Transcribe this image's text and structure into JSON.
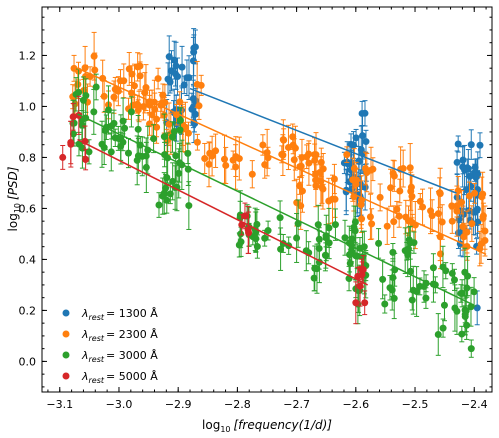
{
  "chart_data": {
    "type": "scatter",
    "xlabel_prefix": "log",
    "xlabel_sub": "10",
    "xlabel_var": "[frequency(1/d)]",
    "ylabel_prefix": "log",
    "ylabel_sub": "10",
    "ylabel_var": "[PSD]",
    "xlim": [
      -3.13,
      -2.37
    ],
    "ylim": [
      -0.12,
      1.39
    ],
    "xticks": [
      -3.1,
      -3.0,
      -2.9,
      -2.8,
      -2.7,
      -2.6,
      -2.5,
      -2.4
    ],
    "xtick_labels": [
      "−3.1",
      "−3.0",
      "−2.9",
      "−2.8",
      "−2.7",
      "−2.6",
      "−2.5",
      "−2.4"
    ],
    "yticks": [
      0.0,
      0.2,
      0.4,
      0.6,
      0.8,
      1.0,
      1.2
    ],
    "ytick_labels": [
      "0.0",
      "0.2",
      "0.4",
      "0.6",
      "0.8",
      "1.0",
      "1.2"
    ],
    "grid": false,
    "legend_position": "lower-left",
    "series": [
      {
        "name": "λrest = 1300 Å",
        "lambda_label": "λ",
        "sub_label": "rest",
        "value_label": "= 1300 Å",
        "color": "#1f77b4",
        "line": [
          [
            -2.88,
            1.07
          ],
          [
            -2.43,
            0.66
          ]
        ],
        "groups": [
          {
            "x": [
              -2.92,
              -2.87
            ],
            "y": [
              0.92,
              1.25
            ],
            "n": 30
          },
          {
            "x": [
              -2.62,
              -2.58
            ],
            "y": [
              0.62,
              0.98
            ],
            "n": 30
          },
          {
            "x": [
              -2.43,
              -2.39
            ],
            "y": [
              0.45,
              0.88
            ],
            "n": 35
          }
        ],
        "extra": [
          [
            -2.395,
            0.21
          ]
        ]
      },
      {
        "name": "λrest = 2300 Å",
        "lambda_label": "λ",
        "sub_label": "rest",
        "value_label": "= 2300 Å",
        "color": "#ff7f0e",
        "line": [
          [
            -3.07,
            1.15
          ],
          [
            -2.38,
            0.42
          ]
        ],
        "groups": [
          {
            "x": [
              -3.08,
              -3.03
            ],
            "y": [
              1.0,
              1.2
            ],
            "n": 12
          },
          {
            "x": [
              -3.03,
              -2.96
            ],
            "y": [
              0.98,
              1.16
            ],
            "n": 20
          },
          {
            "x": [
              -2.96,
              -2.86
            ],
            "y": [
              0.85,
              1.12
            ],
            "n": 30
          },
          {
            "x": [
              -2.86,
              -2.7
            ],
            "y": [
              0.72,
              0.92
            ],
            "n": 25
          },
          {
            "x": [
              -2.7,
              -2.6
            ],
            "y": [
              0.6,
              0.82
            ],
            "n": 30
          },
          {
            "x": [
              -2.6,
              -2.5
            ],
            "y": [
              0.48,
              0.78
            ],
            "n": 30
          },
          {
            "x": [
              -2.5,
              -2.38
            ],
            "y": [
              0.42,
              0.68
            ],
            "n": 32
          }
        ],
        "extra": []
      },
      {
        "name": "λrest = 3000 Å",
        "lambda_label": "λ",
        "sub_label": "rest",
        "value_label": "= 3000 Å",
        "color": "#2ca02c",
        "line": [
          [
            -3.07,
            0.97
          ],
          [
            -2.4,
            0.22
          ]
        ],
        "groups": [
          {
            "x": [
              -3.08,
              -3.03
            ],
            "y": [
              0.82,
              1.08
            ],
            "n": 15
          },
          {
            "x": [
              -3.03,
              -2.95
            ],
            "y": [
              0.76,
              1.02
            ],
            "n": 25
          },
          {
            "x": [
              -2.95,
              -2.88
            ],
            "y": [
              0.6,
              0.95
            ],
            "n": 25
          },
          {
            "x": [
              -2.8,
              -2.7
            ],
            "y": [
              0.42,
              0.58
            ],
            "n": 20
          },
          {
            "x": [
              -2.7,
              -2.6
            ],
            "y": [
              0.32,
              0.55
            ],
            "n": 30
          },
          {
            "x": [
              -2.6,
              -2.5
            ],
            "y": [
              0.22,
              0.48
            ],
            "n": 30
          },
          {
            "x": [
              -2.5,
              -2.4
            ],
            "y": [
              0.1,
              0.4
            ],
            "n": 30
          }
        ],
        "extra": [
          [
            -2.405,
            0.05
          ]
        ]
      },
      {
        "name": "λrest = 5000 Å",
        "lambda_label": "λ",
        "sub_label": "rest",
        "value_label": "= 5000 Å",
        "color": "#d62728",
        "line": [
          [
            -3.07,
            0.87
          ],
          [
            -2.58,
            0.3
          ]
        ],
        "groups": [
          {
            "x": [
              -3.1,
              -3.05
            ],
            "y": [
              0.75,
              1.05
            ],
            "n": 6
          },
          {
            "x": [
              -2.8,
              -2.75
            ],
            "y": [
              0.48,
              0.58
            ],
            "n": 4
          },
          {
            "x": [
              -2.62,
              -2.58
            ],
            "y": [
              0.28,
              0.4
            ],
            "n": 5
          }
        ],
        "extra": [
          [
            -3.095,
            0.8
          ],
          [
            -2.6,
            0.23
          ],
          [
            -2.585,
            0.23
          ]
        ]
      }
    ]
  }
}
